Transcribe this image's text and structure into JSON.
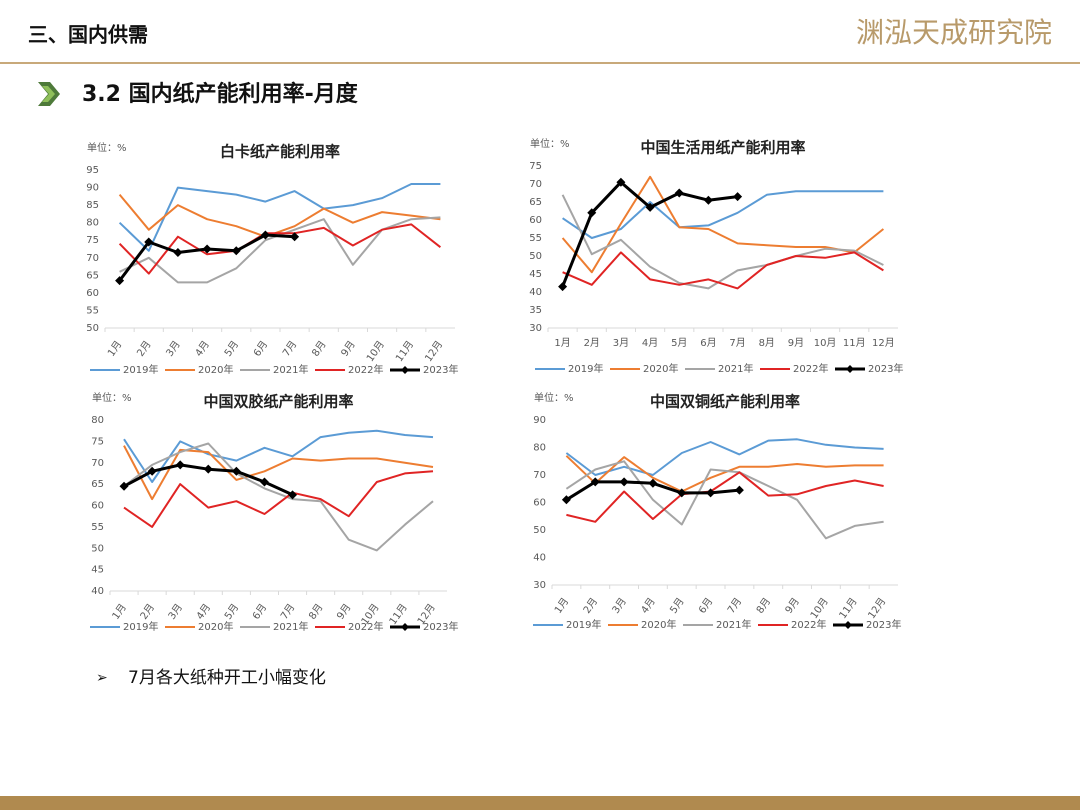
{
  "header": {
    "section": "三、国内供需",
    "logo": "渊泓天成研究院",
    "subtitle": "3.2 国内纸产能利用率-月度",
    "bullet": "7月各大纸种开工小幅变化"
  },
  "chart_data": [
    {
      "type": "line",
      "title": "白卡纸产能利用率",
      "unit": "单位：%",
      "categories": [
        "1月",
        "2月",
        "3月",
        "4月",
        "5月",
        "6月",
        "7月",
        "8月",
        "9月",
        "10月",
        "11月",
        "12月"
      ],
      "ylim": [
        50,
        95
      ],
      "yticks": [
        50,
        55,
        60,
        65,
        70,
        75,
        80,
        85,
        90,
        95
      ],
      "series": [
        {
          "name": "2019年",
          "color": "#5b9bd5",
          "values": [
            80,
            72,
            90,
            89,
            88,
            86,
            89,
            84,
            85,
            87,
            91,
            91
          ]
        },
        {
          "name": "2020年",
          "color": "#ed7d31",
          "values": [
            88,
            78,
            85,
            81,
            79,
            76,
            79,
            84,
            80,
            83,
            82,
            81
          ]
        },
        {
          "name": "2021年",
          "color": "#a5a5a5",
          "values": [
            66,
            70,
            63,
            63,
            67,
            75,
            78,
            81,
            68,
            78,
            81,
            81.5
          ]
        },
        {
          "name": "2022年",
          "color": "#e02424",
          "values": [
            74,
            65.5,
            76,
            71,
            72,
            77,
            77,
            78.5,
            73.5,
            78,
            79.5,
            73
          ]
        },
        {
          "name": "2023年",
          "color": "#000000",
          "values": [
            63.5,
            74.5,
            71.5,
            72.5,
            72,
            76.5,
            76,
            null,
            null,
            null,
            null,
            null
          ]
        }
      ]
    },
    {
      "type": "line",
      "title": "中国生活用纸产能利用率",
      "unit": "单位：%",
      "categories": [
        "1月",
        "2月",
        "3月",
        "4月",
        "5月",
        "6月",
        "7月",
        "8月",
        "9月",
        "10月",
        "11月",
        "12月"
      ],
      "ylim": [
        30,
        75
      ],
      "yticks": [
        30,
        35,
        40,
        45,
        50,
        55,
        60,
        65,
        70,
        75
      ],
      "series": [
        {
          "name": "2019年",
          "color": "#5b9bd5",
          "values": [
            60.5,
            55,
            57.5,
            65,
            58,
            58.5,
            62,
            67,
            68,
            68,
            68,
            68
          ]
        },
        {
          "name": "2020年",
          "color": "#ed7d31",
          "values": [
            55,
            45.5,
            59,
            72,
            58,
            57.5,
            53.5,
            53,
            52.5,
            52.5,
            51,
            57.5
          ]
        },
        {
          "name": "2021年",
          "color": "#a5a5a5",
          "values": [
            67,
            50.5,
            54.5,
            47,
            42.5,
            41,
            46,
            47.5,
            50,
            52,
            51.5,
            47.5
          ]
        },
        {
          "name": "2022年",
          "color": "#e02424",
          "values": [
            45.5,
            42,
            51,
            43.5,
            42,
            43.5,
            41,
            47.5,
            50,
            49.5,
            51,
            46
          ]
        },
        {
          "name": "2023年",
          "color": "#000000",
          "values": [
            41.5,
            62,
            70.5,
            63.5,
            67.5,
            65.5,
            66.5,
            null,
            null,
            null,
            null,
            null
          ]
        }
      ]
    },
    {
      "type": "line",
      "title": "中国双胶纸产能利用率",
      "unit": "单位：%",
      "categories": [
        "1月",
        "2月",
        "3月",
        "4月",
        "5月",
        "6月",
        "7月",
        "8月",
        "9月",
        "10月",
        "11月",
        "12月"
      ],
      "ylim": [
        40,
        80
      ],
      "yticks": [
        40,
        45,
        50,
        55,
        60,
        65,
        70,
        75,
        80
      ],
      "series": [
        {
          "name": "2019年",
          "color": "#5b9bd5",
          "values": [
            75.5,
            65.5,
            75,
            72,
            70.5,
            73.5,
            71.5,
            76,
            77,
            77.5,
            76.5,
            76
          ]
        },
        {
          "name": "2020年",
          "color": "#ed7d31",
          "values": [
            74,
            61.5,
            73,
            72.5,
            66,
            68,
            71,
            70.5,
            71,
            71,
            70,
            69
          ]
        },
        {
          "name": "2021年",
          "color": "#a5a5a5",
          "values": [
            64.5,
            69.5,
            72.5,
            74.5,
            67.5,
            64,
            61.5,
            61,
            52,
            49.5,
            55.5,
            61
          ]
        },
        {
          "name": "2022年",
          "color": "#e02424",
          "values": [
            59.5,
            55,
            65,
            59.5,
            61,
            58,
            63,
            61.5,
            57.5,
            65.5,
            67.5,
            68
          ]
        },
        {
          "name": "2023年",
          "color": "#000000",
          "values": [
            64.5,
            68,
            69.5,
            68.5,
            68,
            65.5,
            62.5,
            null,
            null,
            null,
            null,
            null
          ]
        }
      ]
    },
    {
      "type": "line",
      "title": "中国双铜纸产能利用率",
      "unit": "单位：%",
      "categories": [
        "1月",
        "2月",
        "3月",
        "4月",
        "5月",
        "6月",
        "7月",
        "8月",
        "9月",
        "10月",
        "11月",
        "12月"
      ],
      "ylim": [
        30,
        90
      ],
      "yticks": [
        30,
        40,
        50,
        60,
        70,
        80,
        90
      ],
      "series": [
        {
          "name": "2019年",
          "color": "#5b9bd5",
          "values": [
            78,
            70,
            73,
            70,
            78,
            82,
            77.5,
            82.5,
            83,
            81,
            80,
            79.5
          ]
        },
        {
          "name": "2020年",
          "color": "#ed7d31",
          "values": [
            77,
            67,
            76.5,
            69,
            64,
            69,
            73,
            73,
            74,
            73,
            73.5,
            73.5
          ]
        },
        {
          "name": "2021年",
          "color": "#a5a5a5",
          "values": [
            65,
            72,
            75,
            61,
            52,
            72,
            71,
            66,
            61,
            47,
            51.5,
            53
          ]
        },
        {
          "name": "2022年",
          "color": "#e02424",
          "values": [
            55.5,
            53,
            64,
            54,
            63,
            64,
            71,
            62.5,
            63,
            66,
            68,
            66
          ]
        },
        {
          "name": "2023年",
          "color": "#000000",
          "values": [
            61,
            67.5,
            67.5,
            67,
            63.5,
            63.5,
            64.5,
            null,
            null,
            null,
            null,
            null
          ]
        }
      ]
    }
  ]
}
